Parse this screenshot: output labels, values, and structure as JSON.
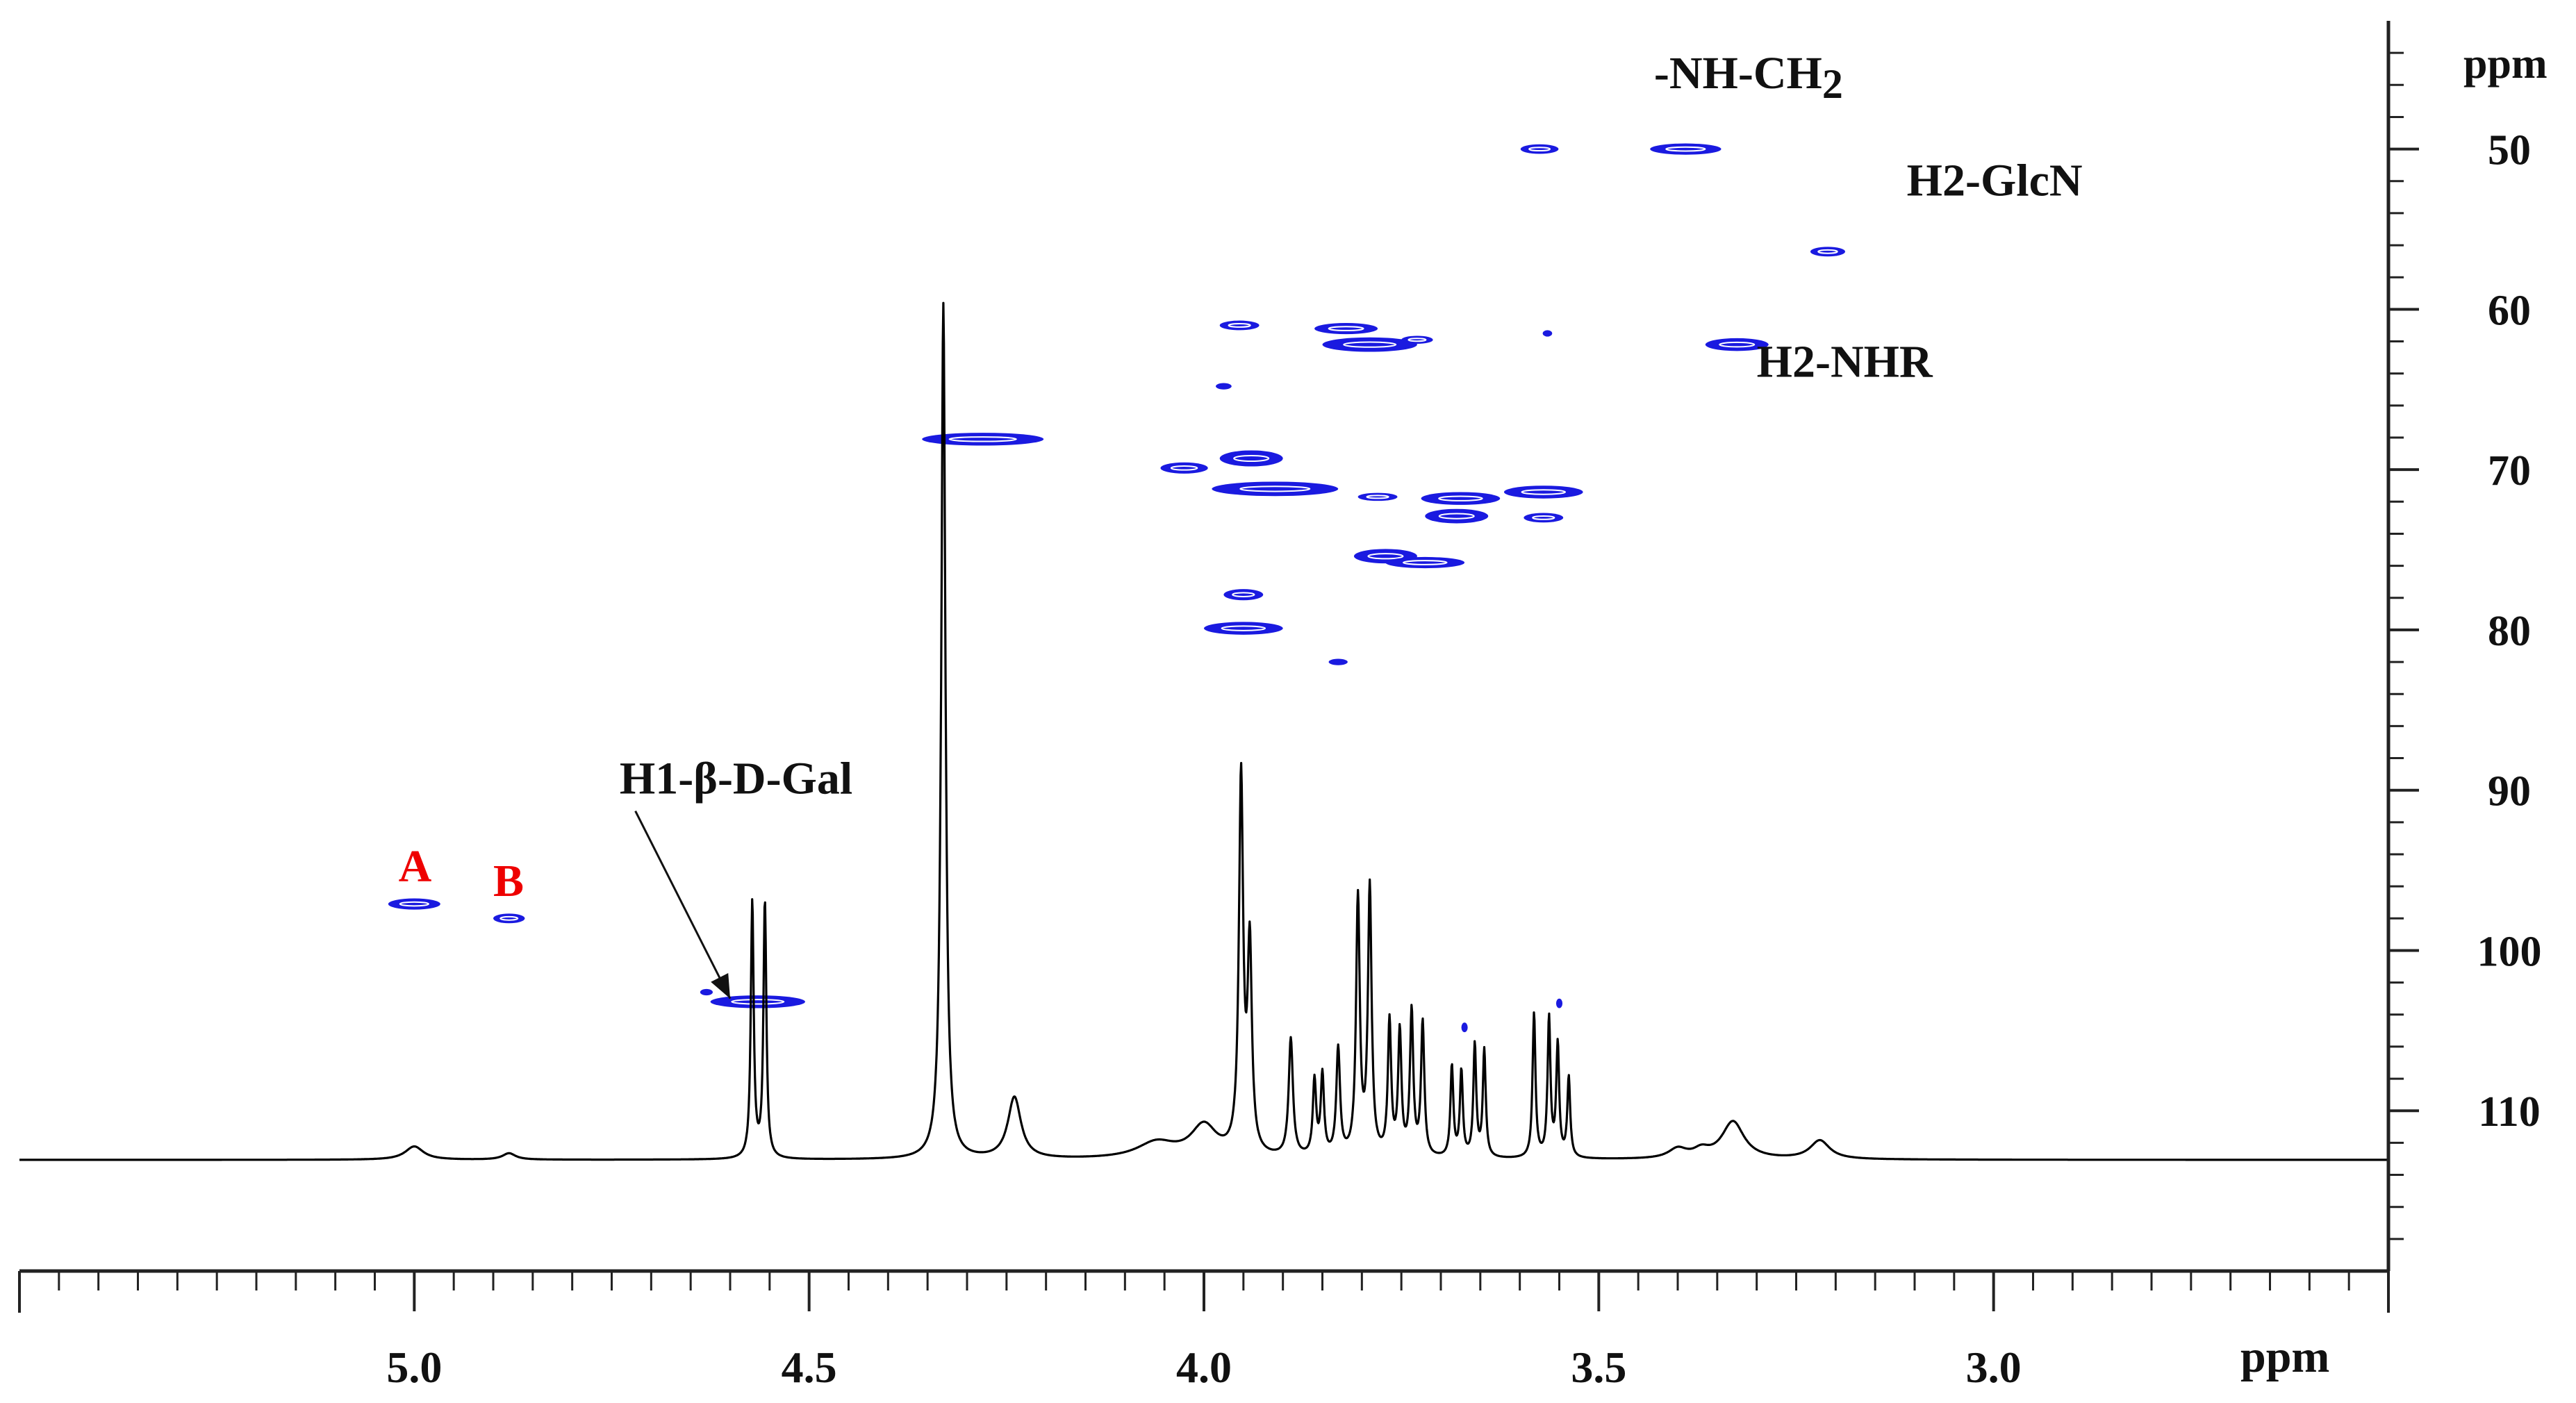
{
  "chart_data": {
    "type": "heatmap",
    "x_axis": {
      "label": "ppm",
      "range": [
        5.5,
        2.5
      ],
      "reversed": true,
      "ticks": [
        5.0,
        4.5,
        4.0,
        3.5,
        3.0
      ],
      "tick_labels": [
        "5.0",
        "4.5",
        "4.0",
        "3.5",
        "3.0"
      ],
      "minor_step": 0.05
    },
    "y_axis": {
      "label": "ppm",
      "position": "right",
      "range": [
        42,
        120
      ],
      "reversed": true,
      "ticks": [
        50,
        60,
        70,
        80,
        90,
        100,
        110
      ],
      "tick_labels": [
        "50",
        "60",
        "70",
        "80",
        "90",
        "100",
        "110"
      ],
      "minor_step": 2
    },
    "grid": false,
    "spectrum_1d": {
      "baseline": 0,
      "peaks": [
        {
          "ppm": 5.0,
          "h": 0.025,
          "w": 0.014
        },
        {
          "ppm": 4.88,
          "h": 0.012,
          "w": 0.01
        },
        {
          "ppm": 4.572,
          "h": 0.48,
          "w": 0.0022
        },
        {
          "ppm": 4.556,
          "h": 0.48,
          "w": 0.0022
        },
        {
          "ppm": 4.33,
          "h": 1.6,
          "w": 0.0032
        },
        {
          "ppm": 4.24,
          "h": 0.115,
          "w": 0.01
        },
        {
          "ppm": 4.06,
          "h": 0.03,
          "w": 0.03
        },
        {
          "ppm": 4.0,
          "h": 0.06,
          "w": 0.02
        },
        {
          "ppm": 3.953,
          "h": 0.7,
          "w": 0.0032
        },
        {
          "ppm": 3.942,
          "h": 0.38,
          "w": 0.0032
        },
        {
          "ppm": 3.89,
          "h": 0.22,
          "w": 0.0032
        },
        {
          "ppm": 3.86,
          "h": 0.14,
          "w": 0.0025
        },
        {
          "ppm": 3.85,
          "h": 0.15,
          "w": 0.0025
        },
        {
          "ppm": 3.83,
          "h": 0.2,
          "w": 0.0028
        },
        {
          "ppm": 3.805,
          "h": 0.48,
          "w": 0.0028
        },
        {
          "ppm": 3.79,
          "h": 0.5,
          "w": 0.0028
        },
        {
          "ppm": 3.765,
          "h": 0.25,
          "w": 0.0025
        },
        {
          "ppm": 3.752,
          "h": 0.23,
          "w": 0.0025
        },
        {
          "ppm": 3.737,
          "h": 0.27,
          "w": 0.0025
        },
        {
          "ppm": 3.723,
          "h": 0.25,
          "w": 0.0025
        },
        {
          "ppm": 3.686,
          "h": 0.17,
          "w": 0.0022
        },
        {
          "ppm": 3.674,
          "h": 0.16,
          "w": 0.0022
        },
        {
          "ppm": 3.657,
          "h": 0.21,
          "w": 0.0022
        },
        {
          "ppm": 3.645,
          "h": 0.2,
          "w": 0.0022
        },
        {
          "ppm": 3.582,
          "h": 0.27,
          "w": 0.0022
        },
        {
          "ppm": 3.563,
          "h": 0.26,
          "w": 0.0022
        },
        {
          "ppm": 3.552,
          "h": 0.21,
          "w": 0.0022
        },
        {
          "ppm": 3.538,
          "h": 0.15,
          "w": 0.0022
        },
        {
          "ppm": 3.4,
          "h": 0.018,
          "w": 0.014
        },
        {
          "ppm": 3.37,
          "h": 0.014,
          "w": 0.012
        },
        {
          "ppm": 3.33,
          "h": 0.07,
          "w": 0.017
        },
        {
          "ppm": 3.22,
          "h": 0.035,
          "w": 0.015
        }
      ]
    },
    "cross_peaks": [
      {
        "x": 5.0,
        "y": 97.1,
        "dx": 0.033,
        "dy": 0.35
      },
      {
        "x": 4.88,
        "y": 98.0,
        "dx": 0.02,
        "dy": 0.3
      },
      {
        "x": 4.565,
        "y": 103.2,
        "dx": 0.06,
        "dy": 0.4
      },
      {
        "x": 4.63,
        "y": 102.6,
        "dx": 0.008,
        "dy": 0.2
      },
      {
        "x": 4.28,
        "y": 68.1,
        "dx": 0.077,
        "dy": 0.4
      },
      {
        "x": 4.025,
        "y": 69.9,
        "dx": 0.03,
        "dy": 0.35
      },
      {
        "x": 3.975,
        "y": 64.8,
        "dx": 0.01,
        "dy": 0.2
      },
      {
        "x": 3.955,
        "y": 61.0,
        "dx": 0.025,
        "dy": 0.3
      },
      {
        "x": 3.94,
        "y": 69.3,
        "dx": 0.04,
        "dy": 0.5
      },
      {
        "x": 3.91,
        "y": 71.2,
        "dx": 0.08,
        "dy": 0.45
      },
      {
        "x": 3.95,
        "y": 77.8,
        "dx": 0.025,
        "dy": 0.35
      },
      {
        "x": 3.95,
        "y": 79.9,
        "dx": 0.05,
        "dy": 0.4
      },
      {
        "x": 3.82,
        "y": 61.2,
        "dx": 0.04,
        "dy": 0.35
      },
      {
        "x": 3.79,
        "y": 62.2,
        "dx": 0.06,
        "dy": 0.45
      },
      {
        "x": 3.73,
        "y": 61.9,
        "dx": 0.02,
        "dy": 0.25
      },
      {
        "x": 3.77,
        "y": 75.4,
        "dx": 0.04,
        "dy": 0.45
      },
      {
        "x": 3.72,
        "y": 75.8,
        "dx": 0.05,
        "dy": 0.35
      },
      {
        "x": 3.78,
        "y": 71.7,
        "dx": 0.025,
        "dy": 0.25
      },
      {
        "x": 3.675,
        "y": 71.8,
        "dx": 0.05,
        "dy": 0.4
      },
      {
        "x": 3.68,
        "y": 72.9,
        "dx": 0.04,
        "dy": 0.45
      },
      {
        "x": 3.57,
        "y": 71.4,
        "dx": 0.05,
        "dy": 0.4
      },
      {
        "x": 3.57,
        "y": 73.0,
        "dx": 0.025,
        "dy": 0.3
      },
      {
        "x": 3.83,
        "y": 82.0,
        "dx": 0.012,
        "dy": 0.2
      },
      {
        "x": 3.575,
        "y": 50.0,
        "dx": 0.024,
        "dy": 0.3
      },
      {
        "x": 3.39,
        "y": 50.0,
        "dx": 0.045,
        "dy": 0.35
      },
      {
        "x": 3.565,
        "y": 61.5,
        "dx": 0.006,
        "dy": 0.2
      },
      {
        "x": 3.325,
        "y": 62.2,
        "dx": 0.04,
        "dy": 0.4
      },
      {
        "x": 3.21,
        "y": 56.4,
        "dx": 0.022,
        "dy": 0.3
      },
      {
        "x": 3.67,
        "y": 104.8,
        "dx": 0.004,
        "dy": 0.3
      },
      {
        "x": 3.55,
        "y": 103.3,
        "dx": 0.004,
        "dy": 0.3
      }
    ],
    "colors": {
      "spectrum": "#000000",
      "contour": "#1a1ae0",
      "axis": "#222222",
      "label": "#111111",
      "label_red": "#ee0000"
    },
    "annotations": [
      {
        "text": "-NH-CH",
        "sub": "2",
        "x": 3.43,
        "y": 46.2,
        "color": "label"
      },
      {
        "text": "H2-GlcN",
        "sub": "",
        "x": 3.11,
        "y": 52.9,
        "color": "label"
      },
      {
        "text": "H2-NHR",
        "sub": "",
        "x": 3.3,
        "y": 64.2,
        "color": "label"
      },
      {
        "text": "H1-β-D-Gal",
        "sub": "",
        "x": 4.74,
        "y": 90.2,
        "color": "label"
      },
      {
        "text": "A",
        "sub": "",
        "x": 5.02,
        "y": 95.7,
        "color": "label_red"
      },
      {
        "text": "B",
        "sub": "",
        "x": 4.9,
        "y": 96.6,
        "color": "label_red"
      }
    ],
    "arrows": [
      {
        "from": [
          4.72,
          91.3
        ],
        "to": [
          4.6,
          103.0
        ]
      }
    ]
  }
}
